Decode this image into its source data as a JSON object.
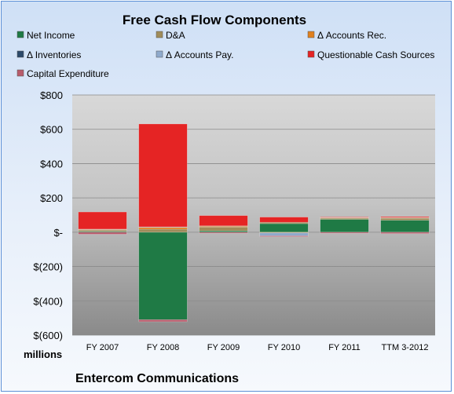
{
  "chart_data": {
    "type": "bar",
    "stacked": true,
    "title": "Free Cash Flow Components",
    "ylabel": "",
    "xlabel": "",
    "units_label": "millions",
    "company": "Entercom Communications",
    "categories": [
      "FY 2007",
      "FY 2008",
      "FY 2009",
      "FY 2010",
      "FY 2011",
      "TTM 3-2012"
    ],
    "ylim": [
      -600,
      800
    ],
    "yticks": [
      800,
      600,
      400,
      200,
      0,
      -200,
      -400,
      -600
    ],
    "ytick_labels": [
      "$800",
      "$600",
      "$400",
      "$200",
      "$-",
      "$(200)",
      "$(400)",
      "$(600)"
    ],
    "legend_position": "top",
    "series": [
      {
        "name": "Net Income",
        "color": "#1f7a45",
        "values": [
          5,
          -510,
          8,
          50,
          75,
          70
        ]
      },
      {
        "name": "D&A",
        "color": "#a08c5a",
        "values": [
          8,
          18,
          22,
          8,
          7,
          12
        ]
      },
      {
        "name": "Δ Accounts Rec.",
        "color": "#e0801e",
        "values": [
          3,
          10,
          5,
          -3,
          2,
          2
        ]
      },
      {
        "name": "Δ Inventories",
        "color": "#2d4a6a",
        "values": [
          0,
          0,
          0,
          0,
          0,
          0
        ]
      },
      {
        "name": "Δ Accounts Pay.",
        "color": "#8faacc",
        "values": [
          2,
          3,
          2,
          -18,
          2,
          2
        ]
      },
      {
        "name": "Questionable Cash Sources",
        "color": "#e52424",
        "values": [
          100,
          600,
          60,
          30,
          3,
          5
        ]
      },
      {
        "name": "Capital Expenditure",
        "color": "#b85c6c",
        "values": [
          -12,
          -12,
          -6,
          -5,
          -6,
          -8
        ]
      }
    ]
  }
}
